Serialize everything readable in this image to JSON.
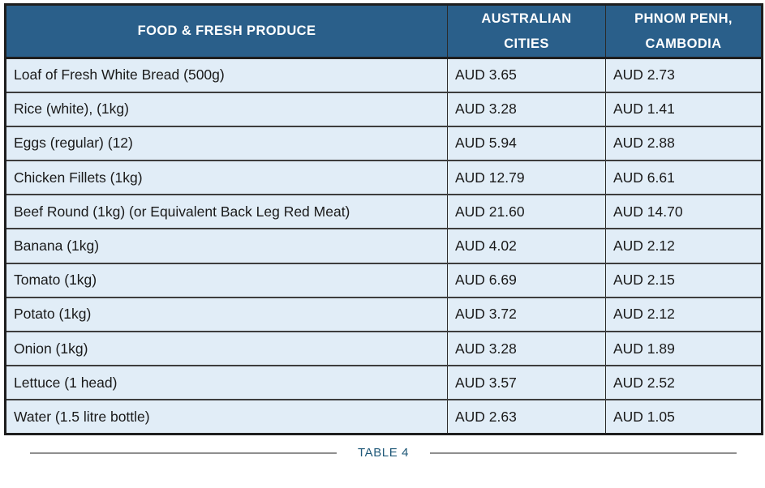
{
  "colors": {
    "header_bg": "#2A5F8A",
    "header_text": "#FFFFFF",
    "row_bg": "#E1EDF7",
    "outer_border": "#1E1E1E",
    "row_divider": "#3D3D3D",
    "column_divider": "#2A2A2A",
    "cell_text": "#1A1A1A",
    "caption_text": "#1F5878",
    "caption_line": "#8F8F8F",
    "page_bg": "#FFFFFF"
  },
  "table": {
    "columns": [
      {
        "id": "food",
        "label": "FOOD & FRESH PRODUCE"
      },
      {
        "id": "australian_cities",
        "label": "AUSTRALIAN CITIES"
      },
      {
        "id": "phnom_penh",
        "label": "PHNOM PENH, CAMBODIA"
      }
    ],
    "rows": [
      {
        "item": "Loaf of Fresh White Bread (500g)",
        "australian_cities": "AUD 3.65",
        "phnom_penh": "AUD 2.73"
      },
      {
        "item": "Rice (white), (1kg)",
        "australian_cities": "AUD 3.28",
        "phnom_penh": "AUD 1.41"
      },
      {
        "item": "Eggs (regular) (12)",
        "australian_cities": "AUD 5.94",
        "phnom_penh": "AUD 2.88"
      },
      {
        "item": "Chicken Fillets (1kg)",
        "australian_cities": "AUD 12.79",
        "phnom_penh": "AUD 6.61"
      },
      {
        "item": "Beef Round (1kg) (or Equivalent Back Leg Red Meat)",
        "australian_cities": "AUD 21.60",
        "phnom_penh": "AUD 14.70"
      },
      {
        "item": "Banana (1kg)",
        "australian_cities": "AUD 4.02",
        "phnom_penh": "AUD 2.12"
      },
      {
        "item": "Tomato (1kg)",
        "australian_cities": "AUD 6.69",
        "phnom_penh": "AUD 2.15"
      },
      {
        "item": "Potato (1kg)",
        "australian_cities": "AUD 3.72",
        "phnom_penh": "AUD 2.12"
      },
      {
        "item": "Onion (1kg)",
        "australian_cities": "AUD 3.28",
        "phnom_penh": "AUD 1.89"
      },
      {
        "item": "Lettuce (1 head)",
        "australian_cities": "AUD 3.57",
        "phnom_penh": "AUD 2.52"
      },
      {
        "item": "Water (1.5 litre bottle)",
        "australian_cities": "AUD 2.63",
        "phnom_penh": "AUD 1.05"
      }
    ]
  },
  "caption": {
    "label": "TABLE 4"
  },
  "chart_data": {
    "type": "table",
    "title": "TABLE 4",
    "categories": [
      "Loaf of Fresh White Bread (500g)",
      "Rice (white), (1kg)",
      "Eggs (regular) (12)",
      "Chicken Fillets (1kg)",
      "Beef Round (1kg) (or Equivalent Back Leg Red Meat)",
      "Banana (1kg)",
      "Tomato (1kg)",
      "Potato (1kg)",
      "Onion (1kg)",
      "Lettuce (1 head)",
      "Water (1.5 litre bottle)"
    ],
    "series": [
      {
        "name": "AUSTRALIAN CITIES",
        "unit": "AUD",
        "values": [
          3.65,
          3.28,
          5.94,
          12.79,
          21.6,
          4.02,
          6.69,
          3.72,
          3.28,
          3.57,
          2.63
        ]
      },
      {
        "name": "PHNOM PENH, CAMBODIA",
        "unit": "AUD",
        "values": [
          2.73,
          1.41,
          2.88,
          6.61,
          14.7,
          2.12,
          2.15,
          2.12,
          1.89,
          2.52,
          1.05
        ]
      }
    ]
  }
}
